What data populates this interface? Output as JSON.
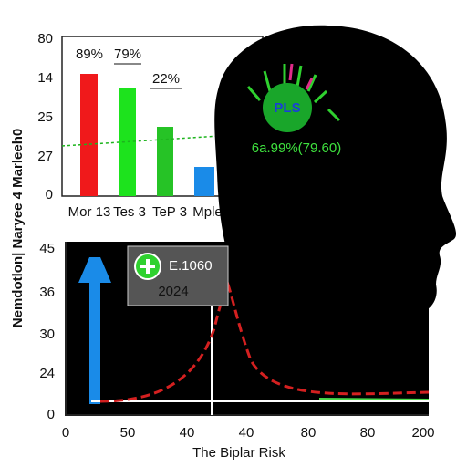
{
  "top_chart": {
    "y_labels": [
      "80",
      "14",
      "25",
      "27",
      "0"
    ],
    "bar_labels": [
      "89%",
      "79%",
      "22%"
    ],
    "x_labels": [
      "Mor 13",
      "Tes 3",
      "TeP 3",
      "Mpler"
    ]
  },
  "side_label": "Nemdotlon| Naryee 4 Marleeh0",
  "badge": {
    "label": "PLS",
    "caption": "6a.99%(79.60)"
  },
  "bottom_chart": {
    "y_labels": [
      "45",
      "36",
      "30",
      "24",
      "0"
    ],
    "x_labels": [
      "0",
      "50",
      "40",
      "40",
      "80",
      "80",
      "200"
    ],
    "x_title": "The Biplar Risk",
    "annotation": {
      "line1": "E.1060",
      "line2": "2024"
    }
  }
}
